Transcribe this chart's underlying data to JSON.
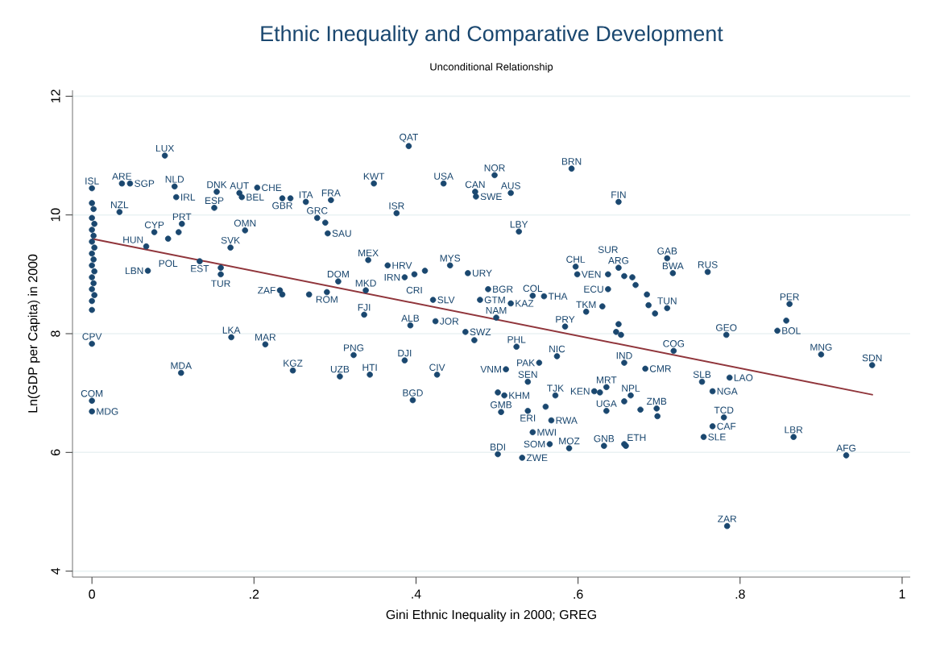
{
  "chart_data": {
    "type": "scatter",
    "title": "Ethnic Inequality and Comparative Development",
    "subtitle": "Unconditional Relationship",
    "xlabel": "Gini Ethnic Inequality in 2000; GREG",
    "ylabel": "Ln(GDP per Capita) in 2000",
    "xlim": [
      -0.024,
      1.01
    ],
    "ylim": [
      3.9,
      12.1
    ],
    "xticks": [
      0,
      {
        "value": 0.2,
        "label": ".2"
      },
      {
        "value": 0.4,
        "label": ".4"
      },
      {
        "value": 0.6,
        "label": ".6"
      },
      {
        "value": 0.8,
        "label": ".8"
      },
      1
    ],
    "yticks": [
      4,
      6,
      8,
      10,
      12
    ],
    "grid": "y",
    "series": [
      {
        "color": "#1a476f",
        "marker": "circle",
        "x": [
          0,
          0,
          0.002,
          0,
          0.003,
          0,
          0.002,
          0,
          0.003,
          0,
          0.002,
          0,
          0.003,
          0,
          0.002,
          0,
          0.003,
          0,
          0,
          0,
          0,
          0,
          0.09,
          0.037,
          0.047,
          0.102,
          0.104,
          0.034,
          0.154,
          0.151,
          0.182,
          0.185,
          0.204,
          0.235,
          0.245,
          0.264,
          0.295,
          0.278,
          0.288,
          0.291,
          0.189,
          0.171,
          0.077,
          0.111,
          0.107,
          0.067,
          0.094,
          0.133,
          0.069,
          0.159,
          0.159,
          0.232,
          0.235,
          0.268,
          0.29,
          0.304,
          0.172,
          0.214,
          0.11,
          0.248,
          0.306,
          0.323,
          0.343,
          0.386,
          0.426,
          0.396,
          0.524,
          0.574,
          0.552,
          0.511,
          0.538,
          0.501,
          0.509,
          0.505,
          0.538,
          0.572,
          0.56,
          0.567,
          0.544,
          0.565,
          0.589,
          0.501,
          0.531,
          0.632,
          0.657,
          0.62,
          0.627,
          0.635,
          0.635,
          0.657,
          0.659,
          0.657,
          0.9,
          0.963,
          0.787,
          0.753,
          0.766,
          0.78,
          0.766,
          0.755,
          0.866,
          0.931,
          0.784,
          0.683,
          0.718,
          0.665,
          0.677,
          0.697,
          0.698,
          0.783,
          0.846,
          0.65,
          0.71,
          0.717,
          0.76,
          0.861,
          0.857,
          0.71,
          0.687,
          0.695,
          0.65,
          0.657,
          0.667,
          0.671,
          0.685,
          0.391,
          0.348,
          0.434,
          0.497,
          0.473,
          0.474,
          0.517,
          0.592,
          0.376,
          0.527,
          0.341,
          0.365,
          0.386,
          0.398,
          0.411,
          0.442,
          0.464,
          0.489,
          0.479,
          0.517,
          0.544,
          0.558,
          0.499,
          0.421,
          0.338,
          0.336,
          0.393,
          0.424,
          0.461,
          0.472,
          0.597,
          0.599,
          0.637,
          0.61,
          0.637,
          0.584,
          0.63,
          0.65,
          0.647,
          0.653
        ],
        "values": [
          10.45,
          10.2,
          10.1,
          9.95,
          9.85,
          9.75,
          9.65,
          9.55,
          9.45,
          9.35,
          9.25,
          9.15,
          9.05,
          8.95,
          8.85,
          8.75,
          8.65,
          8.55,
          8.4,
          7.83,
          6.87,
          6.69,
          11.0,
          10.53,
          10.53,
          10.48,
          10.3,
          10.05,
          10.39,
          10.12,
          10.37,
          10.3,
          10.46,
          10.28,
          10.28,
          10.22,
          10.25,
          9.95,
          9.87,
          9.69,
          9.74,
          9.45,
          9.71,
          9.85,
          9.71,
          9.47,
          9.6,
          9.22,
          9.06,
          9.11,
          9.0,
          8.73,
          8.66,
          8.66,
          8.7,
          8.88,
          7.94,
          7.82,
          7.34,
          7.38,
          7.28,
          7.64,
          7.31,
          7.55,
          7.31,
          6.88,
          7.78,
          7.62,
          7.51,
          7.4,
          7.19,
          7.01,
          6.96,
          6.68,
          6.7,
          6.96,
          6.77,
          6.54,
          6.34,
          6.14,
          6.07,
          5.97,
          5.91,
          6.11,
          7.51,
          7.03,
          7.01,
          7.1,
          6.7,
          6.14,
          6.11,
          6.86,
          7.65,
          7.47,
          7.26,
          7.19,
          7.03,
          6.59,
          6.44,
          6.26,
          6.26,
          5.95,
          4.76,
          7.41,
          7.71,
          6.96,
          6.72,
          6.74,
          6.61,
          7.98,
          8.05,
          10.22,
          9.27,
          9.02,
          9.04,
          8.5,
          8.22,
          8.43,
          8.48,
          8.34,
          9.11,
          8.97,
          8.95,
          8.82,
          8.66,
          11.16,
          10.53,
          10.53,
          10.67,
          10.39,
          10.31,
          10.37,
          10.78,
          10.03,
          9.72,
          9.24,
          9.15,
          8.95,
          9.0,
          9.06,
          9.15,
          9.02,
          8.75,
          8.57,
          8.51,
          8.64,
          8.63,
          8.27,
          8.57,
          8.73,
          8.32,
          8.14,
          8.21,
          8.03,
          7.89,
          9.13,
          9.0,
          9.0,
          8.37,
          8.75,
          8.12,
          8.46,
          8.16,
          8.03,
          7.98
        ],
        "value_labels": [
          "ISL",
          null,
          null,
          null,
          null,
          null,
          null,
          null,
          null,
          null,
          null,
          null,
          null,
          null,
          null,
          null,
          null,
          null,
          null,
          "CPV",
          "COM",
          "MDG",
          "LUX",
          "ARE",
          "SGP",
          "NLD",
          "IRL",
          "NZL",
          "DNK",
          "ESP",
          "AUT",
          "BEL",
          "CHE",
          "GBR",
          null,
          "ITA",
          "FRA",
          "GRC",
          null,
          "SAU",
          "OMN",
          "SVK",
          "CYP",
          "PRT",
          null,
          "HUN",
          "POL",
          "EST",
          "LBN",
          "TUR",
          null,
          "ZAF",
          null,
          null,
          "ROM",
          "DOM",
          "LKA",
          "MAR",
          "MDA",
          "KGZ",
          "UZB",
          "PNG",
          "HTI",
          "DJI",
          "CIV",
          "BGD",
          "PHL",
          "NIC",
          "PAK",
          "VNM",
          "SEN",
          null,
          "KHM",
          "GMB",
          "ERI",
          "TJK",
          null,
          "RWA",
          "MWI",
          "SOM",
          "MOZ",
          "BDI",
          "ZWE",
          "GNB",
          "IND",
          "KEN",
          null,
          "MRT",
          "UGA",
          "ETH",
          null,
          null,
          "MNG",
          "SDN",
          "LAO",
          "SLB",
          "NGA",
          "TCD",
          "CAF",
          "SLE",
          "LBR",
          "AFG",
          "ZAR",
          "CMR",
          "COG",
          "NPL",
          null,
          "ZMB",
          null,
          "GEO",
          "BOL",
          "FIN",
          "GAB",
          "BWA",
          "RUS",
          "PER",
          null,
          "TUN",
          null,
          null,
          "ARG",
          null,
          null,
          null,
          null,
          "QAT",
          "KWT",
          "USA",
          "NOR",
          "CAN",
          "SWE",
          "AUS",
          "BRN",
          "ISR",
          "LBY",
          "MEX",
          "HRV",
          "IRN",
          "CRI",
          null,
          "MYS",
          "URY",
          "BGR",
          "GTM",
          "KAZ",
          "COL",
          "THA",
          "NAM",
          "SLV",
          "MKD",
          "FJI",
          "ALB",
          "JOR",
          "SWZ",
          null,
          "CHL",
          "VEN",
          "SUR",
          "TKM",
          "ECU",
          "PRY",
          null,
          null,
          null,
          null
        ]
      },
      {
        "type": "line",
        "marker": "none",
        "color": "#90353b",
        "x": [
          0,
          0.964
        ],
        "values": [
          9.6,
          6.97
        ]
      }
    ]
  }
}
